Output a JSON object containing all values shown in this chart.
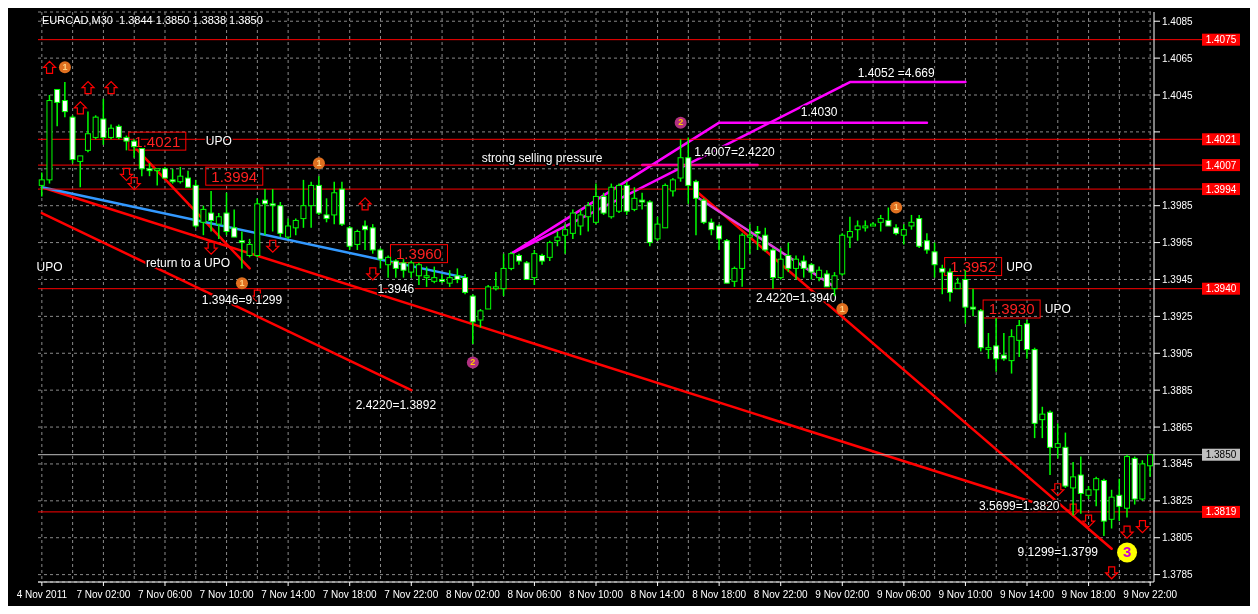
{
  "chart_data": {
    "type": "candlestick",
    "title": "EURCAD,M30  1.3844 1.3850 1.3838 1.3850",
    "categories": [
      "4 Nov 2011",
      null,
      null,
      null,
      null,
      null,
      null,
      null,
      "7 Nov 02:00",
      null,
      null,
      null,
      null,
      null,
      null,
      null,
      "7 Nov 06:00",
      null,
      null,
      null,
      null,
      null,
      null,
      null,
      "7 Nov 10:00",
      null,
      null,
      null,
      null,
      null,
      null,
      null,
      "7 Nov 14:00",
      null,
      null,
      null,
      null,
      null,
      null,
      null,
      "7 Nov 18:00",
      null,
      null,
      null,
      null,
      null,
      null,
      null,
      "7 Nov 22:00",
      null,
      null,
      null,
      null,
      null,
      null,
      null,
      "8 Nov 02:00",
      null,
      null,
      null,
      null,
      null,
      null,
      null,
      "8 Nov 06:00",
      null,
      null,
      null,
      null,
      null,
      null,
      null,
      "8 Nov 10:00",
      null,
      null,
      null,
      null,
      null,
      null,
      null,
      "8 Nov 14:00",
      null,
      null,
      null,
      null,
      null,
      null,
      null,
      "8 Nov 18:00",
      null,
      null,
      null,
      null,
      null,
      null,
      null,
      "8 Nov 22:00",
      null,
      null,
      null,
      null,
      null,
      null,
      null,
      "9 Nov 02:00",
      null,
      null,
      null,
      null,
      null,
      null,
      null,
      "9 Nov 06:00",
      null,
      null,
      null,
      null,
      null,
      null,
      null,
      "9 Nov 10:00",
      null,
      null,
      null,
      null,
      null,
      null,
      null,
      "9 Nov 14:00",
      null,
      null,
      null,
      null,
      null,
      null,
      null,
      "9 Nov 18:00",
      null,
      null,
      null,
      null,
      null,
      null,
      null,
      "9 Nov 22:00"
    ],
    "ohlc": [
      [
        1.3996,
        1.4003,
        1.399,
        1.3999
      ],
      [
        1.3999,
        1.4045,
        1.3997,
        1.4042
      ],
      [
        1.4048,
        1.4048,
        1.4028,
        1.4041
      ],
      [
        1.4042,
        1.4052,
        1.4033,
        1.4036
      ],
      [
        1.4033,
        1.4034,
        1.4008,
        1.401
      ],
      [
        1.4009,
        1.4012,
        1.3995,
        1.4012
      ],
      [
        1.4015,
        1.4036,
        1.4014,
        1.4024
      ],
      [
        1.4022,
        1.4034,
        1.4021,
        1.4033
      ],
      [
        1.4032,
        1.4043,
        1.4018,
        1.4022
      ],
      [
        1.4022,
        1.4029,
        1.4021,
        1.4027
      ],
      [
        1.4028,
        1.4029,
        1.4021,
        1.4022
      ],
      [
        1.4022,
        1.4023,
        1.4015,
        1.402
      ],
      [
        1.402,
        1.4021,
        1.4011,
        1.4017
      ],
      [
        1.4016,
        1.4016,
        1.4001,
        1.4005
      ],
      [
        1.4005,
        1.4008,
        1.4001,
        1.4004
      ],
      [
        1.4004,
        1.4005,
        1.3996,
        1.4005
      ],
      [
        1.4005,
        1.4006,
        1.4,
        1.4
      ],
      [
        1.3999,
        1.4005,
        1.3997,
        1.3998
      ],
      [
        1.3998,
        1.4006,
        1.3997,
        1.4001
      ],
      [
        1.4,
        1.4004,
        1.3995,
        1.3995
      ],
      [
        1.3996,
        1.3999,
        1.3973,
        1.3974
      ],
      [
        1.3976,
        1.3985,
        1.3969,
        1.3983
      ],
      [
        1.3981,
        1.3993,
        1.3971,
        1.3977
      ],
      [
        1.3975,
        1.3981,
        1.3967,
        1.3979
      ],
      [
        1.3981,
        1.3992,
        1.3969,
        1.3971
      ],
      [
        1.3973,
        1.3983,
        1.3968,
        1.3968
      ],
      [
        1.3966,
        1.3971,
        1.3951,
        1.3965
      ],
      [
        1.3958,
        1.3967,
        1.3957,
        1.3964
      ],
      [
        1.3958,
        1.3989,
        1.3957,
        1.3986
      ],
      [
        1.3988,
        1.3994,
        1.3969,
        1.3986
      ],
      [
        1.3986,
        1.3994,
        1.3971,
        1.3985
      ],
      [
        1.3985,
        1.3987,
        1.3968,
        1.397
      ],
      [
        1.3968,
        1.3978,
        1.3967,
        1.3974
      ],
      [
        1.3973,
        1.3978,
        1.3969,
        1.3977
      ],
      [
        1.3978,
        1.3999,
        1.3973,
        1.3985
      ],
      [
        1.3985,
        1.3998,
        1.3973,
        1.3996
      ],
      [
        1.3996,
        1.4001,
        1.398,
        1.3981
      ],
      [
        1.398,
        1.3989,
        1.3976,
        1.3978
      ],
      [
        1.398,
        1.3998,
        1.3975,
        1.3992
      ],
      [
        1.3994,
        1.3998,
        1.3974,
        1.3975
      ],
      [
        1.3973,
        1.3974,
        1.3961,
        1.3963
      ],
      [
        1.3964,
        1.3972,
        1.3961,
        1.3971
      ],
      [
        1.3974,
        1.3977,
        1.3961,
        1.3972
      ],
      [
        1.3973,
        1.3975,
        1.3959,
        1.3961
      ],
      [
        1.3961,
        1.3962,
        1.3951,
        1.3956
      ],
      [
        1.3953,
        1.3958,
        1.3946,
        1.3957
      ],
      [
        1.3955,
        1.3956,
        1.3946,
        1.3951
      ],
      [
        1.3954,
        1.3956,
        1.3946,
        1.395
      ],
      [
        1.3949,
        1.3955,
        1.3946,
        1.3954
      ],
      [
        1.3947,
        1.3954,
        1.3942,
        1.3953
      ],
      [
        1.3946,
        1.3952,
        1.3941,
        1.3947
      ],
      [
        1.3944,
        1.3952,
        1.3943,
        1.3946
      ],
      [
        1.3945,
        1.3948,
        1.3943,
        1.3944
      ],
      [
        1.3943,
        1.395,
        1.3941,
        1.3946
      ],
      [
        1.3947,
        1.3951,
        1.3943,
        1.3945
      ],
      [
        1.3946,
        1.3948,
        1.3937,
        1.3938
      ],
      [
        1.3936,
        1.3937,
        1.391,
        1.3922
      ],
      [
        1.3923,
        1.3929,
        1.3919,
        1.3928
      ],
      [
        1.3929,
        1.3942,
        1.3929,
        1.3941
      ],
      [
        1.394,
        1.3949,
        1.3939,
        1.3941
      ],
      [
        1.394,
        1.3959,
        1.3936,
        1.3951
      ],
      [
        1.3951,
        1.396,
        1.395,
        1.3959
      ],
      [
        1.3958,
        1.3959,
        1.3953,
        1.3955
      ],
      [
        1.3954,
        1.3955,
        1.3945,
        1.3945
      ],
      [
        1.3946,
        1.3961,
        1.3942,
        1.3959
      ],
      [
        1.3958,
        1.3959,
        1.3953,
        1.3955
      ],
      [
        1.3957,
        1.3966,
        1.3955,
        1.3965
      ],
      [
        1.3966,
        1.3971,
        1.3963,
        1.3968
      ],
      [
        1.3969,
        1.3975,
        1.3959,
        1.3972
      ],
      [
        1.397,
        1.3983,
        1.3967,
        1.3981
      ],
      [
        1.3974,
        1.3983,
        1.3969,
        1.398
      ],
      [
        1.3979,
        1.3987,
        1.3971,
        1.3985
      ],
      [
        1.3976,
        1.3997,
        1.3975,
        1.399
      ],
      [
        1.399,
        1.3992,
        1.398,
        1.3981
      ],
      [
        1.3979,
        1.3997,
        1.3978,
        1.3995
      ],
      [
        1.3982,
        1.3997,
        1.3981,
        1.3996
      ],
      [
        1.3996,
        1.3998,
        1.398,
        1.3982
      ],
      [
        1.3983,
        1.3995,
        1.3982,
        1.3989
      ],
      [
        1.3988,
        1.3992,
        1.3983,
        1.3987
      ],
      [
        1.3987,
        1.3988,
        1.3963,
        1.3965
      ],
      [
        1.3967,
        1.3979,
        1.3966,
        1.3975
      ],
      [
        1.3973,
        1.3997,
        1.3973,
        1.3996
      ],
      [
        1.3993,
        1.4,
        1.399,
        1.3999
      ],
      [
        1.4,
        1.4021,
        1.3998,
        1.4011
      ],
      [
        1.4011,
        1.4022,
        1.3986,
        1.3996
      ],
      [
        1.3998,
        1.3999,
        1.3969,
        1.3989
      ],
      [
        1.3988,
        1.3989,
        1.3975,
        1.3976
      ],
      [
        1.3976,
        1.3978,
        1.3969,
        1.3972
      ],
      [
        1.3974,
        1.3975,
        1.3961,
        1.3967
      ],
      [
        1.3966,
        1.3967,
        1.3943,
        1.3943
      ],
      [
        1.3944,
        1.3952,
        1.3941,
        1.3951
      ],
      [
        1.3951,
        1.397,
        1.3941,
        1.3969
      ],
      [
        1.3968,
        1.3975,
        1.3959,
        1.3969
      ],
      [
        1.3971,
        1.3974,
        1.3961,
        1.397
      ],
      [
        1.3969,
        1.3973,
        1.396,
        1.3961
      ],
      [
        1.3961,
        1.3962,
        1.394,
        1.3946
      ],
      [
        1.3946,
        1.3962,
        1.3945,
        1.3956
      ],
      [
        1.3958,
        1.3965,
        1.3949,
        1.3951
      ],
      [
        1.3951,
        1.3958,
        1.3945,
        1.3956
      ],
      [
        1.3955,
        1.3958,
        1.3946,
        1.3951
      ],
      [
        1.3953,
        1.3954,
        1.3945,
        1.3949
      ],
      [
        1.3946,
        1.3952,
        1.3944,
        1.395
      ],
      [
        1.3948,
        1.395,
        1.3941,
        1.3941
      ],
      [
        1.394,
        1.3949,
        1.3936,
        1.3947
      ],
      [
        1.3948,
        1.397,
        1.3947,
        1.3969
      ],
      [
        1.3968,
        1.3979,
        1.3962,
        1.3971
      ],
      [
        1.3972,
        1.3977,
        1.3966,
        1.3974
      ],
      [
        1.3973,
        1.3977,
        1.3971,
        1.3974
      ],
      [
        1.3974,
        1.3976,
        1.3974,
        1.3975
      ],
      [
        1.3976,
        1.398,
        1.3971,
        1.3978
      ],
      [
        1.3977,
        1.3984,
        1.3974,
        1.3974
      ],
      [
        1.3973,
        1.3975,
        1.3969,
        1.397
      ],
      [
        1.3969,
        1.3975,
        1.3964,
        1.3972
      ],
      [
        1.3974,
        1.398,
        1.3972,
        1.3976
      ],
      [
        1.3978,
        1.398,
        1.3962,
        1.3963
      ],
      [
        1.3966,
        1.397,
        1.3959,
        1.3961
      ],
      [
        1.396,
        1.3965,
        1.3946,
        1.3953
      ],
      [
        1.3951,
        1.3953,
        1.3937,
        1.3949
      ],
      [
        1.3949,
        1.3951,
        1.3933,
        1.3938
      ],
      [
        1.394,
        1.3946,
        1.394,
        1.3943
      ],
      [
        1.3945,
        1.395,
        1.3921,
        1.393
      ],
      [
        1.393,
        1.394,
        1.3925,
        1.3929
      ],
      [
        1.3928,
        1.3929,
        1.3906,
        1.3908
      ],
      [
        1.3907,
        1.3916,
        1.3902,
        1.3908
      ],
      [
        1.3909,
        1.3924,
        1.3895,
        1.3902
      ],
      [
        1.3904,
        1.3916,
        1.3901,
        1.3902
      ],
      [
        1.3901,
        1.3918,
        1.3894,
        1.3914
      ],
      [
        1.3912,
        1.3923,
        1.3903,
        1.392
      ],
      [
        1.3921,
        1.3923,
        1.3902,
        1.3907
      ],
      [
        1.3907,
        1.3908,
        1.3859,
        1.3867
      ],
      [
        1.3869,
        1.3876,
        1.3859,
        1.3872
      ],
      [
        1.3873,
        1.3874,
        1.3839,
        1.3854
      ],
      [
        1.3854,
        1.3867,
        1.3848,
        1.3856
      ],
      [
        1.3854,
        1.3862,
        1.3832,
        1.3833
      ],
      [
        1.3832,
        1.3846,
        1.3817,
        1.3838
      ],
      [
        1.3839,
        1.3849,
        1.3818,
        1.3829
      ],
      [
        1.3828,
        1.3833,
        1.3826,
        1.3831
      ],
      [
        1.3831,
        1.3838,
        1.3822,
        1.3837
      ],
      [
        1.3836,
        1.3837,
        1.3806,
        1.3814
      ],
      [
        1.3815,
        1.3831,
        1.381,
        1.3827
      ],
      [
        1.3828,
        1.3837,
        1.3814,
        1.3822
      ],
      [
        1.3821,
        1.385,
        1.3816,
        1.3849
      ],
      [
        1.3848,
        1.3849,
        1.3823,
        1.3826
      ],
      [
        1.3826,
        1.3847,
        1.3825,
        1.3845
      ],
      [
        1.3844,
        1.385,
        1.3838,
        1.385
      ]
    ],
    "series": [
      {
        "type": "line",
        "color": "#ff0000",
        "values": [
          1.3981,
          null,
          null,
          null,
          null,
          null,
          null,
          null,
          null,
          null,
          null,
          null,
          null,
          null,
          null,
          null,
          null,
          null,
          null,
          null,
          null,
          null,
          null,
          null,
          null,
          null,
          null,
          null,
          null,
          null,
          null,
          null,
          null,
          null,
          null,
          null,
          null,
          null,
          null,
          null,
          null,
          null,
          null,
          null,
          null,
          null,
          null,
          null,
          1.3885,
          null,
          null,
          null,
          null,
          null,
          null,
          null,
          null,
          null,
          null,
          null,
          null,
          null,
          null,
          null,
          null,
          null,
          null,
          null,
          null,
          null,
          null,
          null,
          null,
          null,
          null,
          null,
          null,
          null,
          null,
          null,
          null,
          null,
          null,
          null,
          null,
          null,
          null,
          null,
          null,
          null,
          null,
          null,
          null,
          null,
          null,
          null,
          null,
          null,
          null,
          null,
          null,
          null,
          null,
          null,
          null,
          null,
          null,
          null,
          null,
          null,
          null,
          null,
          null,
          null,
          null,
          null,
          null,
          null,
          null,
          null,
          null,
          null,
          null,
          null,
          null,
          null,
          null,
          null,
          null,
          null,
          null,
          null,
          null,
          null,
          null,
          null,
          null,
          null,
          null,
          null,
          null,
          null,
          null,
          null,
          null
        ]
      },
      {
        "type": "line",
        "color": "#ff0000",
        "values": [
          1.3995,
          null,
          null,
          null,
          null,
          null,
          null,
          null,
          null,
          null,
          null,
          null,
          null,
          null,
          null,
          null,
          null,
          null,
          null,
          null,
          null,
          null,
          null,
          null,
          null,
          null,
          null,
          null,
          null,
          null,
          null,
          null,
          null,
          null,
          null,
          null,
          null,
          null,
          null,
          null,
          null,
          null,
          null,
          null,
          null,
          null,
          null,
          null,
          null,
          null,
          null,
          null,
          null,
          null,
          null,
          null,
          null,
          null,
          null,
          null,
          null,
          null,
          null,
          null,
          null,
          null,
          null,
          null,
          null,
          null,
          null,
          null,
          null,
          null,
          null,
          null,
          null,
          null,
          null,
          null,
          null,
          null,
          null,
          null,
          null,
          null,
          null,
          null,
          null,
          null,
          null,
          null,
          null,
          null,
          null,
          null,
          null,
          null,
          null,
          null,
          null,
          null,
          null,
          null,
          null,
          null,
          null,
          null,
          null,
          null,
          null,
          null,
          null,
          null,
          null,
          null,
          null,
          null,
          null,
          null,
          null,
          null,
          null,
          null,
          null,
          null,
          null,
          null,
          null,
          null,
          null,
          null,
          1.382,
          null,
          null,
          null,
          null,
          null,
          null,
          null,
          null,
          null,
          null,
          null,
          null
        ]
      },
      {
        "type": "line",
        "color": "#ff0000",
        "values": [
          null,
          null,
          null,
          null,
          null,
          null,
          null,
          null,
          null,
          null,
          null,
          null,
          1.4017,
          null,
          null,
          null,
          null,
          null,
          null,
          null,
          null,
          null,
          null,
          null,
          null,
          null,
          null,
          1.3951,
          null,
          null,
          null,
          null,
          null,
          null,
          null,
          null,
          null,
          null,
          null,
          null,
          null,
          null,
          null,
          null,
          null,
          null,
          null,
          null,
          null,
          null,
          null,
          null,
          null,
          null,
          null,
          null,
          null,
          null,
          null,
          null,
          null,
          null,
          null,
          null,
          null,
          null,
          null,
          null,
          null,
          null,
          null,
          null,
          null,
          null,
          null,
          null,
          null,
          null,
          null,
          null,
          null,
          null,
          null,
          null,
          null,
          null,
          null,
          null,
          null,
          null,
          null,
          null,
          null,
          null,
          null,
          null,
          null,
          null,
          null,
          null,
          null,
          null,
          null,
          null,
          null,
          null,
          null,
          null,
          null,
          null,
          null,
          null,
          null,
          null,
          null,
          null,
          null,
          null,
          null,
          null,
          null,
          null,
          null,
          null,
          null,
          null,
          null,
          null,
          null,
          null,
          null,
          null,
          null,
          null,
          null,
          null,
          null,
          null,
          null,
          null,
          null,
          null,
          null,
          null,
          null
        ]
      },
      {
        "type": "line",
        "color": "#ff0000",
        "values": [
          null,
          null,
          null,
          null,
          null,
          null,
          null,
          null,
          null,
          null,
          null,
          null,
          null,
          null,
          null,
          null,
          null,
          null,
          null,
          null,
          null,
          null,
          null,
          null,
          null,
          null,
          null,
          null,
          null,
          null,
          null,
          null,
          null,
          null,
          null,
          null,
          null,
          null,
          null,
          null,
          null,
          null,
          null,
          null,
          null,
          null,
          null,
          null,
          null,
          null,
          null,
          null,
          null,
          null,
          null,
          null,
          null,
          null,
          null,
          null,
          null,
          null,
          null,
          null,
          null,
          null,
          null,
          null,
          null,
          null,
          null,
          null,
          null,
          null,
          null,
          null,
          null,
          null,
          null,
          null,
          null,
          null,
          null,
          null,
          null,
          1.3993,
          null,
          null,
          null,
          null,
          null,
          null,
          null,
          null,
          null,
          null,
          null,
          null,
          null,
          null,
          null,
          null,
          null,
          null,
          null,
          null,
          null,
          null,
          null,
          null,
          null,
          null,
          null,
          null,
          null,
          null,
          null,
          null,
          null,
          null,
          null,
          null,
          null,
          null,
          null,
          null,
          null,
          null,
          null,
          null,
          null,
          null,
          null,
          null,
          null,
          null,
          null,
          null,
          null,
          1.3799,
          null,
          null,
          null,
          null,
          null
        ]
      },
      {
        "type": "line",
        "color": "#3399ff",
        "values": [
          1.3995,
          null,
          null,
          null,
          null,
          null,
          null,
          null,
          null,
          null,
          null,
          null,
          null,
          null,
          null,
          null,
          null,
          null,
          null,
          null,
          null,
          null,
          null,
          null,
          null,
          null,
          null,
          null,
          null,
          null,
          null,
          null,
          null,
          null,
          null,
          null,
          null,
          null,
          null,
          null,
          null,
          null,
          null,
          null,
          null,
          null,
          null,
          null,
          null,
          null,
          null,
          null,
          null,
          null,
          null,
          1.3946,
          null,
          null,
          null,
          null,
          null,
          null,
          null,
          null,
          null,
          null,
          null,
          null,
          null,
          null,
          null,
          null,
          null,
          null,
          null,
          null,
          null,
          null,
          null,
          null,
          null,
          null,
          null,
          null,
          null,
          null,
          null,
          null,
          null,
          null,
          null,
          null,
          null,
          null,
          null,
          null,
          null,
          null,
          null,
          null,
          null,
          null,
          null,
          null,
          null,
          null,
          null,
          null,
          null,
          null,
          null,
          null,
          null,
          null,
          null,
          null,
          null,
          null,
          null,
          null,
          null,
          null,
          null,
          null,
          null,
          null,
          null,
          null,
          null,
          null,
          null,
          null,
          null,
          null,
          null,
          null,
          null,
          null,
          null,
          null,
          null,
          null,
          null,
          null,
          null
        ]
      },
      {
        "type": "line",
        "color": "#ff00ff",
        "values": [
          null,
          null,
          null,
          null,
          null,
          null,
          null,
          null,
          null,
          null,
          null,
          null,
          null,
          null,
          null,
          null,
          null,
          null,
          null,
          null,
          null,
          null,
          null,
          null,
          null,
          null,
          null,
          null,
          null,
          null,
          null,
          null,
          null,
          null,
          null,
          null,
          null,
          null,
          null,
          null,
          null,
          null,
          null,
          null,
          null,
          null,
          null,
          null,
          null,
          null,
          null,
          null,
          null,
          null,
          null,
          null,
          null,
          null,
          null,
          null,
          null,
          1.3959,
          null,
          null,
          null,
          null,
          null,
          null,
          null,
          null,
          null,
          null,
          null,
          null,
          null,
          null,
          null,
          null,
          null,
          null,
          null,
          null,
          null,
          null,
          null,
          null,
          null,
          null,
          null,
          null,
          null,
          null,
          null,
          null,
          null,
          null,
          null,
          null,
          null,
          null,
          null,
          null,
          null,
          null,
          null,
          1.4052,
          null,
          null,
          null,
          null,
          null,
          null,
          null,
          null,
          null,
          null,
          null,
          null,
          null,
          null,
          1.4052,
          null,
          null,
          null,
          null,
          null,
          null,
          null,
          null,
          null,
          null,
          null,
          null,
          null,
          null,
          null,
          null,
          null,
          null,
          null,
          null,
          null,
          null,
          null,
          null
        ]
      },
      {
        "type": "line",
        "color": "#ff00ff",
        "values": [
          null,
          null,
          null,
          null,
          null,
          null,
          null,
          null,
          null,
          null,
          null,
          null,
          null,
          null,
          null,
          null,
          null,
          null,
          null,
          null,
          null,
          null,
          null,
          null,
          null,
          null,
          null,
          null,
          null,
          null,
          null,
          null,
          null,
          null,
          null,
          null,
          null,
          null,
          null,
          null,
          null,
          null,
          null,
          null,
          null,
          null,
          null,
          null,
          null,
          null,
          null,
          null,
          null,
          null,
          null,
          null,
          null,
          null,
          null,
          null,
          null,
          1.3959,
          null,
          null,
          null,
          null,
          null,
          null,
          null,
          null,
          null,
          null,
          null,
          null,
          null,
          null,
          null,
          null,
          null,
          null,
          null,
          null,
          null,
          null,
          null,
          null,
          null,
          null,
          1.403,
          null,
          null,
          null,
          null,
          null,
          null,
          null,
          null,
          null,
          null,
          null,
          null,
          null,
          null,
          null,
          null,
          null,
          null,
          null,
          null,
          null,
          null,
          null,
          null,
          null,
          null,
          1.403,
          null,
          null,
          null,
          null,
          null,
          null,
          null,
          null,
          null,
          null,
          null,
          null,
          null,
          null,
          null,
          null,
          null,
          null,
          null,
          null,
          null,
          null,
          null,
          null,
          null,
          null,
          null,
          null,
          null
        ]
      },
      {
        "type": "line",
        "color": "#ff00ff",
        "values": [
          null,
          null,
          null,
          null,
          null,
          null,
          null,
          null,
          null,
          null,
          null,
          null,
          null,
          null,
          null,
          null,
          null,
          null,
          null,
          null,
          null,
          null,
          null,
          null,
          null,
          null,
          null,
          null,
          null,
          null,
          null,
          null,
          null,
          null,
          null,
          null,
          null,
          null,
          null,
          null,
          null,
          null,
          null,
          null,
          null,
          null,
          null,
          null,
          null,
          null,
          null,
          null,
          null,
          null,
          null,
          null,
          null,
          null,
          null,
          null,
          null,
          null,
          null,
          null,
          null,
          null,
          null,
          null,
          null,
          null,
          null,
          null,
          null,
          null,
          null,
          null,
          null,
          null,
          1.4007,
          null,
          null,
          null,
          null,
          null,
          null,
          null,
          null,
          null,
          null,
          null,
          null,
          null,
          null,
          1.4007,
          null,
          null,
          null,
          null,
          null,
          null,
          null,
          null,
          null,
          null,
          null,
          null,
          null,
          null,
          null,
          null,
          null,
          null,
          null,
          null,
          null,
          null,
          null,
          null,
          null,
          null,
          null,
          null,
          null,
          null,
          null,
          null,
          null,
          null,
          null,
          null,
          null,
          null,
          null,
          null,
          null,
          null,
          null,
          null,
          null,
          null,
          null,
          null,
          null,
          null,
          null
        ]
      },
      {
        "type": "line",
        "color": "#e040e0",
        "values": [
          null,
          null,
          null,
          null,
          null,
          null,
          null,
          null,
          null,
          null,
          null,
          null,
          null,
          null,
          null,
          null,
          null,
          null,
          null,
          null,
          null,
          null,
          null,
          null,
          null,
          null,
          null,
          null,
          null,
          null,
          null,
          null,
          null,
          null,
          null,
          null,
          null,
          null,
          null,
          null,
          null,
          null,
          null,
          null,
          null,
          null,
          null,
          null,
          null,
          null,
          null,
          null,
          null,
          null,
          null,
          null,
          null,
          null,
          null,
          null,
          null,
          null,
          null,
          null,
          null,
          null,
          null,
          null,
          null,
          null,
          null,
          null,
          null,
          null,
          null,
          null,
          null,
          null,
          null,
          null,
          null,
          null,
          null,
          null,
          null,
          1.399,
          null,
          null,
          null,
          null,
          null,
          null,
          null,
          null,
          null,
          null,
          null,
          null,
          null,
          null,
          null,
          null,
          null,
          1.3941,
          null,
          null,
          null,
          null,
          null,
          null,
          null,
          null,
          null,
          null,
          null,
          null,
          null,
          null,
          null,
          null,
          null,
          null,
          null,
          null,
          null,
          null,
          null,
          null,
          null,
          null,
          null,
          null,
          null,
          null,
          null,
          null,
          null,
          null,
          null,
          null,
          null,
          null,
          null,
          null,
          null
        ]
      }
    ],
    "ylim": [
      1.3781,
      1.409
    ],
    "yticks": [
      1.4085,
      1.4065,
      1.4045,
      {
        "value": 1.4025,
        "label": null
      },
      {
        "value": 1.4005,
        "label": null
      },
      1.3985,
      1.3965,
      1.3945,
      1.3925,
      1.3905,
      1.3885,
      1.3865,
      1.3845,
      1.3825,
      1.3805,
      1.3785
    ],
    "grid": true,
    "ref_lines": [
      {
        "axis": "y",
        "value": 1.4075,
        "label": "1.4075",
        "color": "#ff0000"
      },
      {
        "axis": "y",
        "value": 1.4021,
        "label": "1.4021",
        "color": "#ff0000"
      },
      {
        "axis": "y",
        "value": 1.4007,
        "label": "1.4007",
        "color": "#ff0000"
      },
      {
        "axis": "y",
        "value": 1.3994,
        "label": "1.3994",
        "color": "#ff0000"
      },
      {
        "axis": "y",
        "value": 1.394,
        "label": "1.3940",
        "color": "#ff0000"
      },
      {
        "axis": "y",
        "value": 1.3819,
        "label": "1.3819",
        "color": "#ff0000"
      },
      {
        "axis": "y",
        "value": 1.385,
        "label": "1.3850",
        "color": "#c0c0c0"
      }
    ],
    "annotations": [
      "UPO",
      {
        "text": "1.4021",
        "y": 1.402
      },
      {
        "text": "UPO",
        "y": 1.402
      },
      "1.3994",
      "return to a UPO",
      "1.3946=9.1299",
      "1.3960",
      {
        "text": "1.3946",
        "y": 1.394
      },
      "2.4220=1.3892",
      "strong selling pressure",
      "1.4007=2.4220",
      "1.4030",
      "1.4052 =4.669",
      "2.4220=1.3940",
      "1.3952",
      "UPO",
      "1.3930",
      "UPO",
      "3.5699=1.3820",
      "9.1299=1.3799",
      {
        "text": "1",
        "y": 1.406
      },
      {
        "text": "1",
        "y": 1.3943
      },
      {
        "text": "1",
        "y": 1.4008
      },
      {
        "text": "2",
        "y": 1.39
      },
      {
        "text": "2",
        "y": 1.403
      },
      {
        "text": "1",
        "y": 1.3929
      },
      {
        "text": "1",
        "y": 1.3984
      },
      {
        "text": "3",
        "y": 1.3797
      }
    ]
  }
}
